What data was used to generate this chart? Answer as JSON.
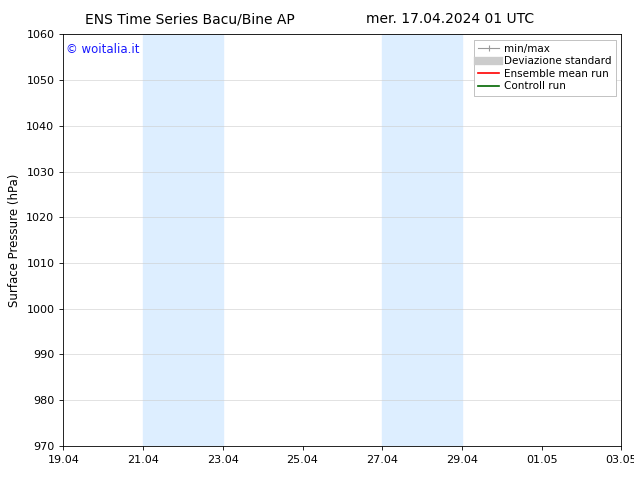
{
  "title_left": "ENS Time Series Bacu/Bine AP",
  "title_right": "mer. 17.04.2024 01 UTC",
  "ylabel": "Surface Pressure (hPa)",
  "ylim": [
    970,
    1060
  ],
  "yticks": [
    970,
    980,
    990,
    1000,
    1010,
    1020,
    1030,
    1040,
    1050,
    1060
  ],
  "xtick_labels": [
    "19.04",
    "21.04",
    "23.04",
    "25.04",
    "27.04",
    "29.04",
    "01.05",
    "03.05"
  ],
  "xtick_positions": [
    0,
    2,
    4,
    6,
    8,
    10,
    12,
    14
  ],
  "shaded_bands": [
    {
      "x_start": 2,
      "x_end": 4
    },
    {
      "x_start": 8,
      "x_end": 10
    }
  ],
  "shade_color": "#ddeeff",
  "watermark_text": "© woitalia.it",
  "watermark_color": "#1a1aff",
  "background_color": "#ffffff",
  "legend_entries": [
    {
      "label": "min/max",
      "color": "#999999",
      "lw": 1.0
    },
    {
      "label": "Deviazione standard",
      "color": "#cccccc",
      "lw": 6
    },
    {
      "label": "Ensemble mean run",
      "color": "#ff0000",
      "lw": 1.2
    },
    {
      "label": "Controll run",
      "color": "#006600",
      "lw": 1.2
    }
  ],
  "grid_color": "#cccccc",
  "title_fontsize": 10,
  "tick_fontsize": 8,
  "ylabel_fontsize": 8.5,
  "watermark_fontsize": 8.5,
  "legend_fontsize": 7.5
}
